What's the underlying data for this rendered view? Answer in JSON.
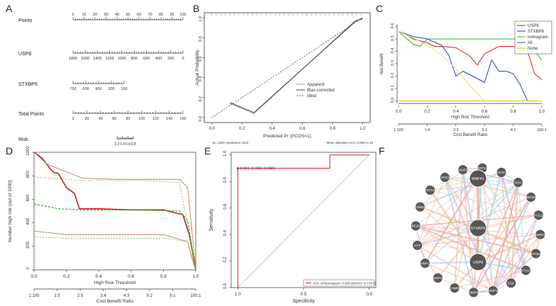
{
  "panel_labels": {
    "a": "A",
    "b": "B",
    "c": "C",
    "d": "D",
    "e": "E",
    "f": "F"
  },
  "chart_data": [
    {
      "panel": "A",
      "type": "nomogram",
      "rows": [
        {
          "name": "Points",
          "ticks": [
            "0",
            "10",
            "20",
            "30",
            "40",
            "50",
            "60",
            "70",
            "80",
            "90",
            "100"
          ]
        },
        {
          "name": "USP8",
          "ticks": [
            "1800",
            "1600",
            "1400",
            "1200",
            "1000",
            "800",
            "600",
            "400",
            "200",
            "0"
          ]
        },
        {
          "name": "STXBP6",
          "ticks": [
            "750",
            "600",
            "450",
            "300",
            "150"
          ]
        },
        {
          "name": "Total Points",
          "ticks": [
            "0",
            "20",
            "40",
            "60",
            "80",
            "100",
            "120",
            "140",
            "160"
          ]
        },
        {
          "name": "Risk",
          "ticks": [
            "0.2",
            "0.4",
            "0.6",
            "0.8"
          ]
        }
      ]
    },
    {
      "panel": "B",
      "type": "line",
      "title": "",
      "xlabel": "Predicted Pr (PCOS=1)",
      "ylabel": "Actual Probability",
      "xticks": [
        "0.0",
        "0.2",
        "0.4",
        "0.6",
        "0.8",
        "1.0"
      ],
      "yticks": [
        "0.0",
        "0.2",
        "0.4",
        "0.6",
        "0.8",
        "1.0"
      ],
      "xlim": [
        -0.05,
        1.05
      ],
      "ylim": [
        -0.05,
        1.05
      ],
      "series": [
        {
          "name": "Apparent",
          "x": [
            0.12,
            0.28,
            0.95,
            1.0
          ],
          "y": [
            0.14,
            0.04,
            0.97,
            1.0
          ]
        },
        {
          "name": "Bias-corrected",
          "x": [
            0.12,
            0.28,
            0.95,
            1.0
          ],
          "y": [
            0.15,
            0.05,
            0.96,
            0.99
          ]
        },
        {
          "name": "Ideal",
          "x": [
            0,
            1
          ],
          "y": [
            0,
            1
          ]
        }
      ],
      "legend": [
        "Apparent",
        "Bias-corrected",
        "Ideal"
      ],
      "footnote_left": "B= 1000 repetitions, boot",
      "footnote_right": "Mean absolute error=0.065 n=18"
    },
    {
      "panel": "C",
      "type": "line",
      "xlabel": "High Risk Threshold",
      "xlabel2": "Cost:Benefit Ratio",
      "ylabel": "Net Benefit",
      "xticks": [
        "0.0",
        "0.2",
        "0.4",
        "0.6",
        "0.8",
        "1.0"
      ],
      "xticks2": [
        "1:100",
        "1:4",
        "2:3",
        "3:2",
        "4:1",
        "100:1"
      ],
      "yticks": [
        "0.0",
        "0.1",
        "0.2",
        "0.3",
        "0.4",
        "0.5",
        "0.6"
      ],
      "xlim": [
        0,
        1
      ],
      "ylim": [
        -0.02,
        0.62
      ],
      "series": [
        {
          "name": "USP8",
          "color": "#e41a1c",
          "x": [
            0,
            0.05,
            0.1,
            0.2,
            0.25,
            0.3,
            0.4,
            0.5,
            0.55,
            0.6,
            0.7,
            0.8,
            0.9,
            0.95,
            1.0
          ],
          "y": [
            0.56,
            0.54,
            0.5,
            0.47,
            0.44,
            0.44,
            0.43,
            0.36,
            0.29,
            0.38,
            0.44,
            0.44,
            0.4,
            0.22,
            0.17
          ]
        },
        {
          "name": "STXBP6",
          "color": "#1f3fd1",
          "x": [
            0,
            0.1,
            0.2,
            0.3,
            0.35,
            0.4,
            0.45,
            0.5,
            0.6,
            0.65,
            0.7,
            0.75,
            0.8,
            0.85,
            0.9,
            0.95,
            1.0
          ],
          "y": [
            0.56,
            0.52,
            0.5,
            0.45,
            0.37,
            0.2,
            0.24,
            0.21,
            0.15,
            0.33,
            0.24,
            0.24,
            0.22,
            0.13,
            0.0,
            0.0,
            0.0
          ]
        },
        {
          "name": "nomogram",
          "color": "#22bb22",
          "x": [
            0,
            0.1,
            0.15,
            0.2,
            0.3,
            0.5,
            0.7,
            0.9,
            0.95,
            1.0
          ],
          "y": [
            0.56,
            0.46,
            0.44,
            0.5,
            0.5,
            0.5,
            0.5,
            0.5,
            0.4,
            0.33
          ]
        },
        {
          "name": "All",
          "color": "#555555",
          "x": [
            0,
            0.1,
            0.2,
            0.3,
            0.4,
            0.5,
            0.6
          ],
          "y": [
            0.56,
            0.51,
            0.45,
            0.37,
            0.26,
            0.12,
            0.0
          ]
        },
        {
          "name": "None",
          "color": "#d8c400",
          "x": [
            0,
            1
          ],
          "y": [
            0,
            0
          ]
        }
      ],
      "legend": [
        "USP8",
        "STXBP6",
        "nomogram",
        "All",
        "None"
      ]
    },
    {
      "panel": "D",
      "type": "line",
      "xlabel": "High Risk Threshold",
      "xlabel2": "Cost:Benefit Ratio",
      "ylabel": "Number high risk (out of 1000)",
      "xticks": [
        "0.0",
        "0.2",
        "0.4",
        "0.6",
        "0.8",
        "1.0"
      ],
      "xticks2": [
        "1:100",
        "1:5",
        "2:5",
        "3:4",
        "4:3",
        "5:2",
        "5:1",
        "100:1"
      ],
      "yticks": [
        "0",
        "200",
        "400",
        "600",
        "800",
        "1000"
      ],
      "xlim": [
        0,
        1
      ],
      "ylim": [
        0,
        1000
      ],
      "series": [
        {
          "name": "Number high risk",
          "color": "#cc1f1f",
          "x": [
            0,
            0.05,
            0.1,
            0.12,
            0.15,
            0.2,
            0.25,
            0.28,
            0.4,
            0.6,
            0.8,
            0.92,
            0.96,
            1.0
          ],
          "y": [
            1000,
            950,
            860,
            830,
            820,
            700,
            650,
            520,
            520,
            510,
            510,
            470,
            300,
            0
          ]
        },
        {
          "name": "Number high risk upper",
          "color": "#b5744a",
          "x": [
            0,
            0.08,
            0.15,
            0.3,
            0.5,
            0.7,
            0.9,
            0.95,
            1.0
          ],
          "y": [
            1000,
            900,
            860,
            780,
            770,
            770,
            770,
            700,
            0
          ]
        },
        {
          "name": "Number high risk lower",
          "color": "#b5744a",
          "x": [
            0,
            0.2,
            0.4,
            0.6,
            0.8,
            0.95,
            0.98,
            1.0
          ],
          "y": [
            330,
            300,
            300,
            300,
            300,
            240,
            80,
            0
          ]
        },
        {
          "name": "Number high risk with event",
          "color": "#22aa22",
          "x": [
            0,
            0.08,
            0.15,
            0.3,
            0.6,
            0.9,
            0.95,
            1.0
          ],
          "y": [
            560,
            540,
            520,
            510,
            510,
            500,
            420,
            0
          ]
        },
        {
          "name": "Number high risk with event upper",
          "color": "#66bb33",
          "x": [
            0,
            0.1,
            0.2,
            0.3,
            0.5,
            0.7,
            0.9,
            1.0
          ],
          "y": [
            790,
            780,
            770,
            760,
            760,
            760,
            740,
            0
          ]
        },
        {
          "name": "Number high risk with event lower",
          "color": "#66bb33",
          "x": [
            0,
            0.2,
            0.4,
            0.6,
            0.8,
            0.95,
            1.0
          ],
          "y": [
            280,
            270,
            270,
            270,
            270,
            240,
            0
          ]
        }
      ]
    },
    {
      "panel": "E",
      "type": "line",
      "xlabel": "Specificity",
      "ylabel": "Sensitivity",
      "xticks": [
        "1.0",
        "0.5",
        "0.0"
      ],
      "yticks": [
        "0.0",
        "0.2",
        "0.4",
        "0.6",
        "0.8",
        "1.0"
      ],
      "xlim": [
        1.05,
        -0.05
      ],
      "ylim": [
        0,
        1.02
      ],
      "series": [
        {
          "name": "ROC",
          "color": "#d62020",
          "x": [
            1.0,
            1.0,
            0.3,
            0.3,
            0.0
          ],
          "y": [
            0.0,
            0.9,
            0.9,
            1.0,
            1.0
          ]
        },
        {
          "name": "Diagonal",
          "color": "#bbbbbb",
          "x": [
            1.0,
            0.0
          ],
          "y": [
            0.0,
            1.0
          ]
        }
      ],
      "point_label": "0.801 (1.000, 0.900)",
      "legend": "AUC of Nomogram: 0.925 (95%CI: 0.774-1)"
    },
    {
      "panel": "F",
      "type": "network",
      "center_nodes": [
        "RNF41",
        "STXBP6",
        "USP8"
      ],
      "ring_nodes": [
        "EXOC7",
        "EXOC1",
        "UBE2D1",
        "POLQ",
        "SERGI",
        "STAM2",
        "STX1A",
        "EGF",
        "CHMP1B",
        "CHMP4B",
        "CHMP6",
        "SNAP29",
        "CHMP1A",
        "HTT",
        "UBE2D3",
        "PSMD4",
        "STX4",
        "STX3",
        "SNAP23",
        "ARTS1"
      ]
    }
  ]
}
